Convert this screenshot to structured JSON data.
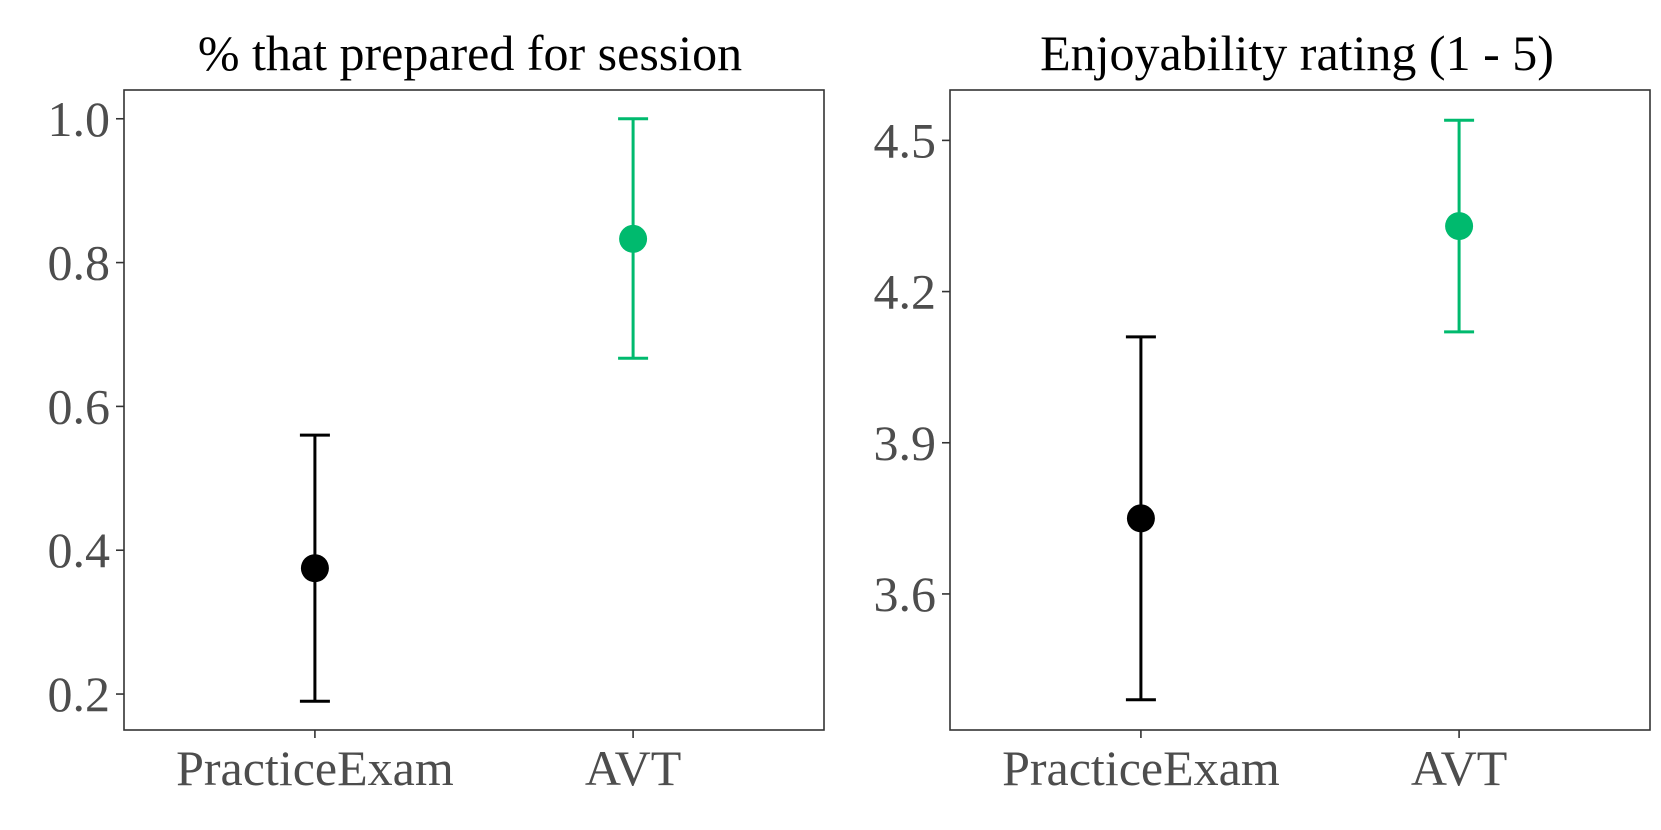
{
  "chart_data": [
    {
      "type": "scatter",
      "title": "% that prepared for session",
      "categories": [
        "PracticeExam",
        "AVT"
      ],
      "ylim": [
        0.15,
        1.04
      ],
      "yticks": [
        0.2,
        0.4,
        0.6,
        0.8,
        1.0
      ],
      "ytick_labels": [
        "0.2",
        "0.4",
        "0.6",
        "0.8",
        "1.0"
      ],
      "points": [
        {
          "category": "PracticeExam",
          "value": 0.375,
          "lower": 0.19,
          "upper": 0.56,
          "color": "#000000"
        },
        {
          "category": "AVT",
          "value": 0.833,
          "lower": 0.667,
          "upper": 1.0,
          "color": "#00ba6e"
        }
      ],
      "grid": false,
      "legend": "none"
    },
    {
      "type": "scatter",
      "title": "Enjoyability rating (1 - 5)",
      "categories": [
        "PracticeExam",
        "AVT"
      ],
      "ylim": [
        3.33,
        4.6
      ],
      "yticks": [
        3.6,
        3.9,
        4.2,
        4.5
      ],
      "ytick_labels": [
        "3.6",
        "3.9",
        "4.2",
        "4.5"
      ],
      "points": [
        {
          "category": "PracticeExam",
          "value": 3.75,
          "lower": 3.39,
          "upper": 4.11,
          "color": "#000000"
        },
        {
          "category": "AVT",
          "value": 4.33,
          "lower": 4.12,
          "upper": 4.54,
          "color": "#00ba6e"
        }
      ],
      "grid": false,
      "legend": "none"
    }
  ]
}
